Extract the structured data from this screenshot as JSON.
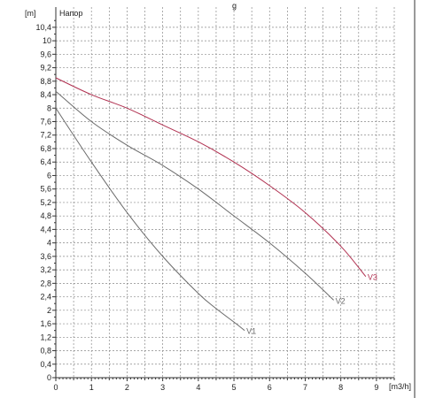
{
  "chart_data": {
    "type": "line",
    "title": "",
    "title_fragment": "g",
    "legend_label": "Напор",
    "y_unit": "[m]",
    "x_unit": "[m3/h]",
    "xlim": [
      0,
      9.5
    ],
    "ylim": [
      0,
      11
    ],
    "x_ticks": [
      "0",
      "1",
      "2",
      "3",
      "4",
      "5",
      "6",
      "7",
      "8",
      "9"
    ],
    "y_ticks": [
      "0",
      "0,4",
      "0,8",
      "1,2",
      "1,6",
      "2",
      "2,4",
      "2,8",
      "3,2",
      "3,6",
      "4",
      "4,4",
      "4,8",
      "5,2",
      "5,6",
      "6",
      "6,4",
      "6,8",
      "7,2",
      "7,6",
      "8",
      "8,4",
      "8,8",
      "9,2",
      "9,6",
      "10",
      "10,4"
    ],
    "grid": true,
    "series": [
      {
        "name": "V1",
        "color": "#6b6b6b",
        "x": [
          0,
          1,
          2,
          3,
          4,
          4.5,
          5.0,
          5.3
        ],
        "y": [
          8.0,
          6.4,
          4.9,
          3.6,
          2.5,
          2.05,
          1.65,
          1.4
        ]
      },
      {
        "name": "V2",
        "color": "#6b6b6b",
        "x": [
          0,
          1,
          2,
          3,
          4,
          5,
          6,
          7,
          7.8
        ],
        "y": [
          8.5,
          7.6,
          6.9,
          6.3,
          5.6,
          4.8,
          4.0,
          3.1,
          2.3
        ]
      },
      {
        "name": "V3",
        "color": "#b03050",
        "x": [
          0,
          1,
          2,
          3,
          4,
          5,
          6,
          7,
          8,
          8.7
        ],
        "y": [
          8.9,
          8.4,
          8.0,
          7.5,
          7.0,
          6.4,
          5.7,
          4.9,
          3.9,
          3.0
        ]
      }
    ]
  }
}
